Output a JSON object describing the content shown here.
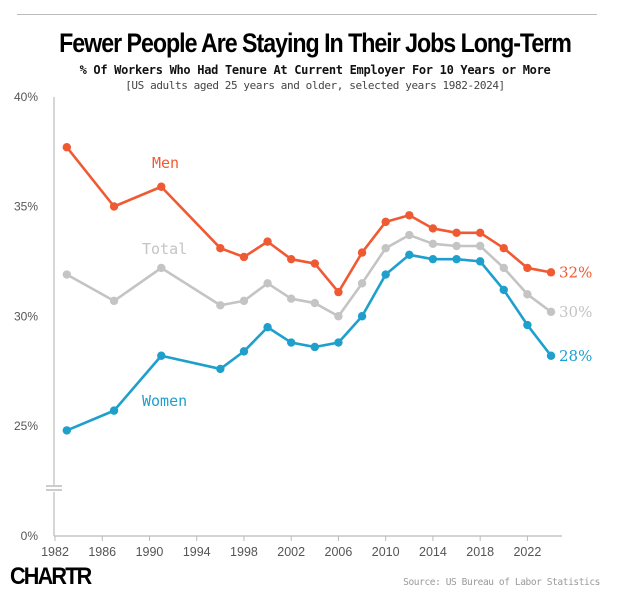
{
  "chart_data": {
    "type": "line",
    "title": "Fewer People Are Staying In Their Jobs Long-Term",
    "subtitle": "% Of Workers Who Had Tenure At Current Employer For 10 Years or More",
    "note": "[US adults aged 25 years and older, selected years 1982-2024]",
    "source": "Source: US Bureau of Labor Statistics",
    "logo": "CHARTR",
    "x": [
      1983,
      1987,
      1991,
      1996,
      1998,
      2000,
      2002,
      2004,
      2006,
      2008,
      2010,
      2012,
      2014,
      2016,
      2018,
      2020,
      2022,
      2024
    ],
    "x_ticks": [
      "1982",
      "1986",
      "1990",
      "1994",
      "1998",
      "2002",
      "2006",
      "2010",
      "2014",
      "2018",
      "2022"
    ],
    "y_ticks": [
      "0%",
      "25%",
      "30%",
      "35%",
      "40%"
    ],
    "ylim": [
      0,
      40
    ],
    "y_axis_break": true,
    "grid": false,
    "series": [
      {
        "name": "Men",
        "color": "#f05a33",
        "end_label": "32%",
        "values": [
          37.7,
          35.0,
          35.9,
          33.1,
          32.7,
          33.4,
          32.6,
          32.4,
          31.1,
          32.9,
          34.3,
          34.6,
          34.0,
          33.8,
          33.8,
          33.1,
          32.2,
          32.0
        ]
      },
      {
        "name": "Total",
        "color": "#c4c4c4",
        "end_label": "30%",
        "values": [
          31.9,
          30.7,
          32.2,
          30.5,
          30.7,
          31.5,
          30.8,
          30.6,
          30.0,
          31.5,
          33.1,
          33.7,
          33.3,
          33.2,
          33.2,
          32.2,
          31.0,
          30.2
        ]
      },
      {
        "name": "Women",
        "color": "#1e9fcc",
        "end_label": "28%",
        "values": [
          24.8,
          25.7,
          28.2,
          27.6,
          28.4,
          29.5,
          28.8,
          28.6,
          28.8,
          30.0,
          31.9,
          32.8,
          32.6,
          32.6,
          32.5,
          31.2,
          29.6,
          28.2
        ]
      }
    ]
  }
}
